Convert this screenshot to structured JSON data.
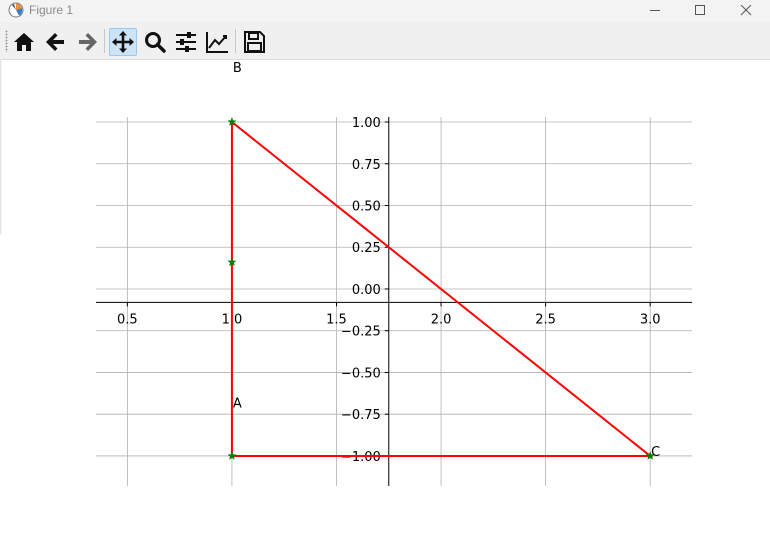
{
  "window": {
    "title": "Figure 1",
    "buttons": [
      "minimize",
      "maximize",
      "close"
    ]
  },
  "toolbar": {
    "tools": [
      {
        "name": "home",
        "icon": "home-icon"
      },
      {
        "name": "back",
        "icon": "arrow-left-icon"
      },
      {
        "name": "forward",
        "icon": "arrow-right-icon"
      },
      {
        "name": "pan",
        "icon": "move-icon",
        "active": true
      },
      {
        "name": "zoom",
        "icon": "magnifier-icon"
      },
      {
        "name": "configure-subplots",
        "icon": "sliders-icon"
      },
      {
        "name": "edit-axis",
        "icon": "line-chart-icon"
      },
      {
        "name": "save",
        "icon": "floppy-disk-icon"
      }
    ]
  },
  "chart_data": {
    "type": "line",
    "title": "",
    "xlabel": "",
    "ylabel": "",
    "xlim": [
      0.35,
      3.2
    ],
    "ylim": [
      -1.18,
      1.03
    ],
    "spines": "centered",
    "grid": true,
    "xticks": [
      0.5,
      1.0,
      1.5,
      2.0,
      2.5,
      3.0
    ],
    "xtick_labels": [
      "0.5",
      "1.0",
      "1.5",
      "2.0",
      "2.5",
      "3.0"
    ],
    "yticks": [
      1.0,
      0.75,
      0.5,
      0.25,
      0.0,
      -0.25,
      -0.5,
      -0.75,
      -1.0
    ],
    "ytick_labels": [
      "1.00",
      "0.75",
      "0.50",
      "0.25",
      "0.00",
      "−0.25",
      "−0.50",
      "−0.75",
      "−1.00"
    ],
    "series": [
      {
        "kind": "line",
        "color": "#ff0000",
        "x": [
          1.0,
          1.0,
          3.0,
          1.0
        ],
        "y": [
          -1.0,
          1.0,
          -1.0,
          -1.0
        ]
      },
      {
        "kind": "scatter",
        "marker": "star",
        "color": "#008000",
        "x": [
          1.0,
          1.0,
          3.0,
          1.0
        ],
        "y": [
          -1.0,
          1.0,
          -1.0,
          0.16
        ]
      }
    ],
    "annotations": [
      {
        "text": "A",
        "x": 1.0,
        "y": -0.68
      },
      {
        "text": "B",
        "x": 1.0,
        "y": 1.33
      },
      {
        "text": "C",
        "x": 3.0,
        "y": -0.97
      }
    ]
  }
}
